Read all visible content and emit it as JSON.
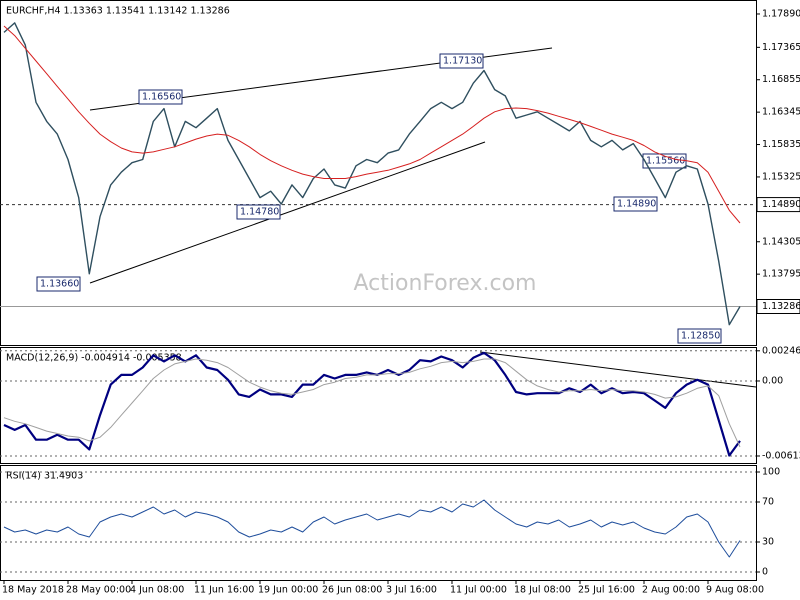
{
  "chart_data": [
    {
      "type": "line",
      "title": "EURCHF,H4  1.13363 1.13541 1.13142 1.13286",
      "watermark": "ActionForex.com",
      "categories": [
        "18 May 2018",
        null,
        null,
        null,
        null,
        null,
        "28 May 00:00",
        null,
        null,
        null,
        null,
        null,
        "4 Jun 08:00",
        null,
        null,
        null,
        null,
        null,
        "11 Jun 16:00",
        null,
        null,
        null,
        null,
        null,
        "19 Jun 00:00",
        null,
        null,
        null,
        null,
        null,
        "26 Jun 08:00",
        null,
        null,
        null,
        null,
        null,
        "3 Jul 16:00",
        null,
        null,
        null,
        null,
        null,
        "11 Jul 00:00",
        null,
        null,
        null,
        null,
        null,
        "18 Jul 08:00",
        null,
        null,
        null,
        null,
        null,
        "25 Jul 16:00",
        null,
        null,
        null,
        null,
        null,
        "2 Aug 00:00",
        null,
        null,
        null,
        null,
        null,
        "9 Aug 08:00",
        null,
        null,
        null
      ],
      "series": [
        {
          "color": "#2f4f5f",
          "values": [
            1.176,
            1.1775,
            1.174,
            1.165,
            1.162,
            1.16,
            1.156,
            1.15,
            1.138,
            1.147,
            1.152,
            1.154,
            1.1555,
            1.156,
            1.162,
            1.164,
            1.158,
            1.162,
            1.161,
            1.1625,
            1.164,
            1.159,
            1.156,
            1.153,
            1.15,
            1.151,
            1.149,
            1.152,
            1.15,
            1.153,
            1.1545,
            1.152,
            1.1515,
            1.155,
            1.156,
            1.1555,
            1.157,
            1.1575,
            1.16,
            1.162,
            1.164,
            1.165,
            1.164,
            1.165,
            1.168,
            1.17,
            1.167,
            1.166,
            1.1625,
            1.163,
            1.1635,
            1.1625,
            1.1615,
            1.1605,
            1.162,
            1.159,
            1.158,
            1.159,
            1.1575,
            1.1585,
            1.156,
            1.153,
            1.15,
            1.154,
            1.155,
            1.1545,
            1.149,
            1.14,
            1.13,
            1.13286
          ]
        },
        {
          "color": "#d62020",
          "values": [
            1.177,
            1.1755,
            1.1735,
            1.1715,
            1.1695,
            1.1675,
            1.1655,
            1.1635,
            1.1617,
            1.16,
            1.1588,
            1.1578,
            1.1572,
            1.157,
            1.1572,
            1.1576,
            1.158,
            1.1586,
            1.1592,
            1.1597,
            1.16,
            1.1598,
            1.159,
            1.158,
            1.1568,
            1.1558,
            1.155,
            1.1543,
            1.1537,
            1.1533,
            1.153,
            1.153,
            1.153,
            1.1533,
            1.1537,
            1.154,
            1.1543,
            1.1548,
            1.1553,
            1.156,
            1.157,
            1.158,
            1.159,
            1.16,
            1.1612,
            1.1625,
            1.1635,
            1.164,
            1.1641,
            1.164,
            1.1637,
            1.1633,
            1.1628,
            1.1623,
            1.1618,
            1.1612,
            1.1606,
            1.16,
            1.1595,
            1.159,
            1.1582,
            1.1572,
            1.1565,
            1.156,
            1.1558,
            1.1555,
            1.154,
            1.151,
            1.148,
            1.146
          ]
        }
      ],
      "ylim": [
        1.1268,
        1.1811
      ],
      "yticks": [
        {
          "value": 1.1789,
          "label": "1.17890"
        },
        1.17365,
        1.16855,
        1.16345,
        1.15835,
        1.15325,
        1.14815,
        1.14305,
        1.13795
      ],
      "markers": [
        {
          "value": 1.1489,
          "label": "1.14890"
        },
        {
          "value": 1.13286,
          "label": "1.13286"
        }
      ],
      "annotations": [
        "1.16560",
        "1.17130",
        "1.14780",
        "1.13660",
        "1.15560",
        "1.14890",
        "1.12850"
      ]
    },
    {
      "type": "line",
      "title": "MACD(12,26,9) -0.004914 -0.005358",
      "series": [
        {
          "color": "#000080",
          "values": [
            -0.0036,
            -0.004,
            -0.0036,
            -0.0048,
            -0.0048,
            -0.0044,
            -0.0048,
            -0.0048,
            -0.0056,
            -0.0028,
            -0.0003,
            0.0005,
            0.0005,
            0.0011,
            0.0021,
            0.0016,
            0.0021,
            0.0016,
            0.0021,
            0.0011,
            0.0009,
            0.0001,
            -0.0011,
            -0.0013,
            -0.0007,
            -0.0011,
            -0.0011,
            -0.0013,
            -0.0003,
            -0.0003,
            0.0005,
            0.0002,
            0.0005,
            0.0005,
            0.0007,
            0.0005,
            0.0009,
            0.0005,
            0.0009,
            0.0017,
            0.0016,
            0.002,
            0.0017,
            0.0011,
            0.0019,
            0.0023,
            0.0017,
            0.0005,
            -0.0009,
            -0.0011,
            -0.001,
            -0.001,
            -0.001,
            -0.0006,
            -0.0009,
            -0.0003,
            -0.001,
            -0.0006,
            -0.001,
            -0.0009,
            -0.001,
            -0.0016,
            -0.0022,
            -0.001,
            -0.0003,
            0.0001,
            -0.0003,
            -0.0032,
            -0.0061,
            -0.0049
          ]
        },
        {
          "color": "#a0a0a0",
          "values": [
            -0.003,
            -0.0033,
            -0.0035,
            -0.0038,
            -0.0041,
            -0.0043,
            -0.0045,
            -0.0046,
            -0.0049,
            -0.0046,
            -0.0038,
            -0.0028,
            -0.0018,
            -0.0008,
            0.0002,
            0.0009,
            0.0014,
            0.0016,
            0.0018,
            0.0017,
            0.0015,
            0.0011,
            0.0005,
            -0.0001,
            -0.0005,
            -0.0008,
            -0.001,
            -0.0011,
            -0.0009,
            -0.0007,
            -0.0003,
            -0.0001,
            0.0002,
            0.0003,
            0.0005,
            0.0005,
            0.0006,
            0.0006,
            0.0007,
            0.001,
            0.0012,
            0.0015,
            0.0016,
            0.0015,
            0.0016,
            0.0018,
            0.0018,
            0.0015,
            0.0008,
            0.0001,
            -0.0004,
            -0.0007,
            -0.0009,
            -0.0008,
            -0.0008,
            -0.0007,
            -0.0008,
            -0.0007,
            -0.0008,
            -0.0008,
            -0.0009,
            -0.0011,
            -0.0014,
            -0.0013,
            -0.001,
            -0.0006,
            -0.0004,
            -0.0012,
            -0.0035,
            -0.0054
          ]
        }
      ],
      "ylim": [
        -0.00671,
        0.00278
      ],
      "yticks": [
        0.002469,
        {
          "value": 0,
          "label": "0.00"
        },
        -0.006136
      ]
    },
    {
      "type": "line",
      "title": "RSI(14) 31.4903",
      "series": [
        {
          "color": "#1f4e9c",
          "values": [
            45,
            40,
            42,
            38,
            42,
            40,
            45,
            38,
            35,
            50,
            55,
            58,
            55,
            60,
            65,
            58,
            62,
            55,
            60,
            58,
            55,
            50,
            40,
            35,
            38,
            42,
            40,
            45,
            40,
            50,
            55,
            48,
            52,
            55,
            58,
            52,
            55,
            58,
            55,
            62,
            60,
            65,
            60,
            68,
            65,
            72,
            62,
            55,
            48,
            45,
            50,
            48,
            52,
            45,
            48,
            52,
            45,
            50,
            47,
            50,
            44,
            40,
            38,
            45,
            55,
            58,
            50,
            30,
            15,
            31.4903
          ]
        }
      ],
      "ylim": [
        -8,
        107
      ],
      "yticks": [
        100,
        70,
        30,
        0
      ]
    }
  ]
}
